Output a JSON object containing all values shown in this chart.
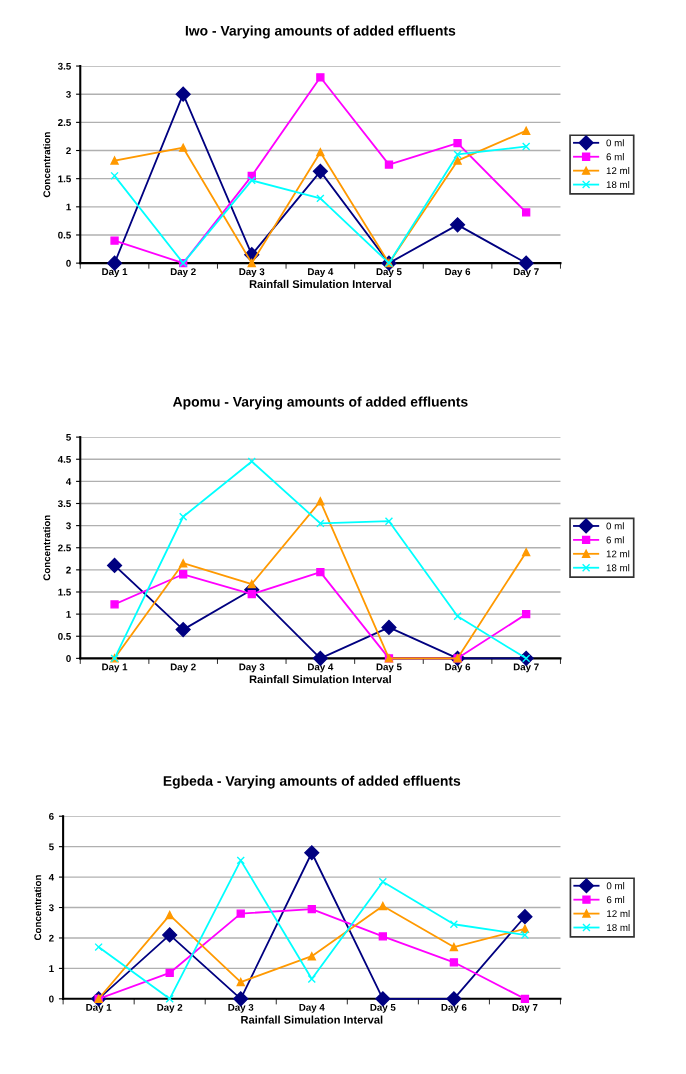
{
  "chart_data": [
    {
      "type": "line",
      "title": "Iwo - Varying amounts of added effluents",
      "xlabel": "Rainfall Simulation Interval",
      "ylabel": "Concentration",
      "categories": [
        "Day 1",
        "Day 2",
        "Day 3",
        "Day 4",
        "Day 5",
        "Day 6",
        "Day 7"
      ],
      "ylim": [
        0,
        3.5
      ],
      "yticks": [
        0,
        0.5,
        1,
        1.5,
        2,
        2.5,
        3,
        3.5
      ],
      "grid": "y",
      "legend": "right",
      "series": [
        {
          "name": "0 ml",
          "color": "#000080",
          "marker": "diamond",
          "values": [
            0,
            3.0,
            0.15,
            1.63,
            0,
            0.68,
            0
          ]
        },
        {
          "name": "6 ml",
          "color": "#ff00ff",
          "marker": "square",
          "values": [
            0.4,
            0,
            1.55,
            3.3,
            1.75,
            2.13,
            0.9
          ]
        },
        {
          "name": "12 ml",
          "color": "#ff9900",
          "marker": "triangle",
          "values": [
            1.82,
            2.05,
            0,
            1.97,
            0,
            1.82,
            2.35
          ]
        },
        {
          "name": "18 ml",
          "color": "#00ffff",
          "marker": "cross",
          "values": [
            1.55,
            0,
            1.47,
            1.15,
            0,
            1.93,
            2.07
          ]
        }
      ]
    },
    {
      "type": "line",
      "title": "Apomu - Varying amounts of added effluents",
      "xlabel": "Rainfall Simulation Interval",
      "ylabel": "Concentration",
      "categories": [
        "Day 1",
        "Day 2",
        "Day 3",
        "Day 4",
        "Day 5",
        "Day 6",
        "Day 7"
      ],
      "ylim": [
        0,
        5
      ],
      "yticks": [
        0,
        0.5,
        1,
        1.5,
        2,
        2.5,
        3,
        3.5,
        4,
        4.5,
        5
      ],
      "grid": "y",
      "legend": "right",
      "series": [
        {
          "name": "0 ml",
          "color": "#000080",
          "marker": "diamond",
          "values": [
            2.1,
            0.65,
            1.55,
            0,
            0.7,
            0,
            0
          ]
        },
        {
          "name": "6 ml",
          "color": "#ff00ff",
          "marker": "square",
          "values": [
            1.22,
            1.9,
            1.45,
            1.95,
            0,
            0,
            1.0
          ]
        },
        {
          "name": "12 ml",
          "color": "#ff9900",
          "marker": "triangle",
          "values": [
            0,
            2.15,
            1.68,
            3.55,
            0,
            0,
            2.4
          ]
        },
        {
          "name": "18 ml",
          "color": "#00ffff",
          "marker": "cross",
          "values": [
            0,
            3.2,
            4.45,
            3.05,
            3.1,
            0.95,
            0
          ]
        }
      ]
    },
    {
      "type": "line",
      "title": "Egbeda - Varying amounts of added effluents",
      "xlabel": "Rainfall Simulation Interval",
      "ylabel": "Concentration",
      "categories": [
        "Day 1",
        "Day 2",
        "Day 3",
        "Day 4",
        "Day 5",
        "Day 6",
        "Day 7"
      ],
      "ylim": [
        0,
        6
      ],
      "yticks": [
        0,
        1,
        2,
        3,
        4,
        5,
        6
      ],
      "grid": "y",
      "legend": "right",
      "series": [
        {
          "name": "0 ml",
          "color": "#000080",
          "marker": "diamond",
          "values": [
            0,
            2.1,
            0,
            4.8,
            0,
            0,
            2.7
          ]
        },
        {
          "name": "6 ml",
          "color": "#ff00ff",
          "marker": "square",
          "values": [
            0,
            0.85,
            2.8,
            2.95,
            2.05,
            1.2,
            0
          ]
        },
        {
          "name": "12 ml",
          "color": "#ff9900",
          "marker": "triangle",
          "values": [
            0,
            2.75,
            0.55,
            1.4,
            3.05,
            1.7,
            2.3
          ]
        },
        {
          "name": "18 ml",
          "color": "#00ffff",
          "marker": "cross",
          "values": [
            1.7,
            0,
            4.55,
            0.65,
            3.85,
            2.45,
            2.1
          ]
        }
      ]
    }
  ]
}
